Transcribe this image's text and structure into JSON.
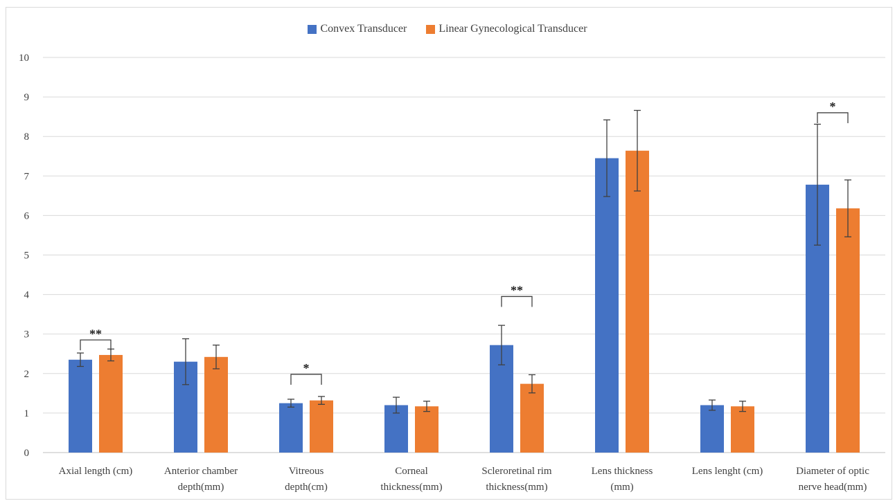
{
  "chart_data": {
    "type": "bar",
    "title": "",
    "xlabel": "",
    "ylabel": "",
    "ylim": [
      0,
      10
    ],
    "yticks": [
      "0",
      "1",
      "2",
      "3",
      "4",
      "5",
      "6",
      "7",
      "8",
      "9",
      "10"
    ],
    "grid": true,
    "legend_position": "top-center",
    "categories": [
      [
        "Axial length (cm)"
      ],
      [
        "Anterior chamber",
        "depth(mm)"
      ],
      [
        "Vitreous",
        "depth(cm)"
      ],
      [
        "Corneal",
        "thickness(mm)"
      ],
      [
        "Scleroretinal rim",
        "thickness(mm)"
      ],
      [
        "Lens thickness",
        "(mm)"
      ],
      [
        "Lens lenght (cm)"
      ],
      [
        "Diameter of optic",
        "nerve head(mm)"
      ]
    ],
    "series": [
      {
        "name": "Convex Transducer",
        "color": "#4472c4",
        "values": [
          2.35,
          2.3,
          1.25,
          1.2,
          2.72,
          7.45,
          1.2,
          6.78
        ],
        "errors": [
          0.17,
          0.58,
          0.1,
          0.2,
          0.5,
          0.97,
          0.13,
          1.53
        ]
      },
      {
        "name": "Linear Gynecological Transducer",
        "color": "#ed7d31",
        "values": [
          2.47,
          2.42,
          1.32,
          1.17,
          1.74,
          7.64,
          1.17,
          6.18
        ],
        "errors": [
          0.15,
          0.3,
          0.1,
          0.13,
          0.23,
          1.02,
          0.13,
          0.72
        ]
      }
    ],
    "significance": [
      {
        "category_index": 0,
        "label": "**",
        "level": 2.85
      },
      {
        "category_index": 2,
        "label": "*",
        "level": 1.98
      },
      {
        "category_index": 4,
        "label": "**",
        "level": 3.95
      },
      {
        "category_index": 7,
        "label": "*",
        "level": 8.6
      }
    ]
  }
}
